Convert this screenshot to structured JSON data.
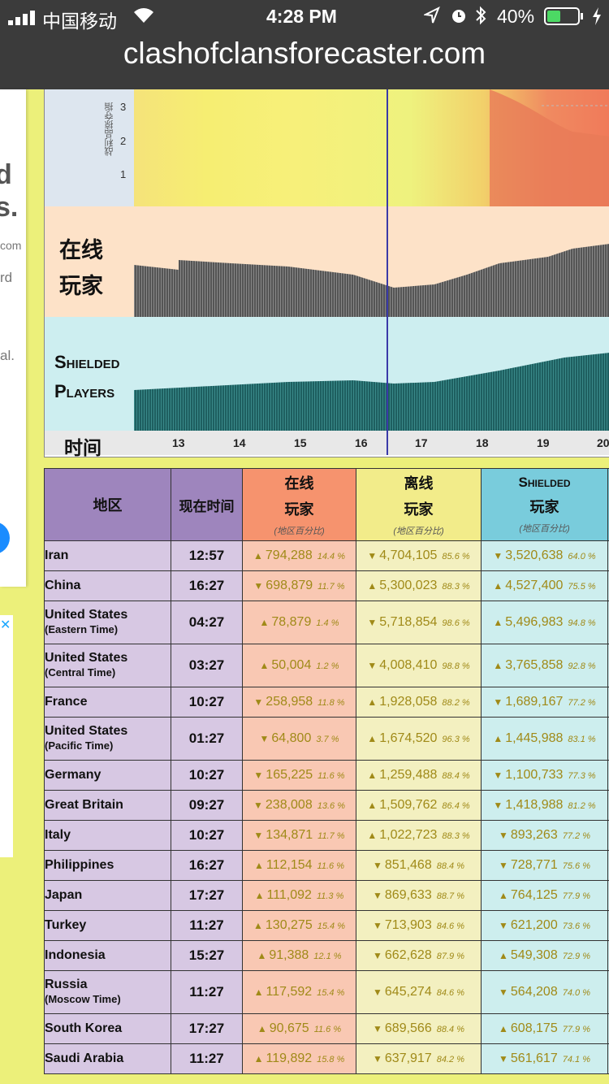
{
  "status": {
    "carrier": "中国移动",
    "time": "4:28 PM",
    "battery": "40%"
  },
  "url": "clashofclansforecaster.com",
  "leftcard": {
    "frag1": "d",
    "frag2": "s.",
    "frag3": "com",
    "frag4": "rd",
    "frag5": "al."
  },
  "chart": {
    "y_label": "战利品掠夺指",
    "y_ticks": [
      "3",
      "2",
      "1"
    ],
    "online_label_1": "在线",
    "online_label_2": "玩家",
    "shielded_label_1": "Shielded",
    "shielded_label_2": "Players",
    "time_label": "时间",
    "x_ticks": [
      "13",
      "14",
      "15",
      "16",
      "17",
      "18",
      "19",
      "20"
    ]
  },
  "table": {
    "headers": {
      "region": "地区",
      "local_time": "现在时间",
      "online_1": "在线",
      "online_2": "玩家",
      "online_sub": "(地区百分比)",
      "offline_1": "离线",
      "offline_2": "玩家",
      "offline_sub": "(地区百分比)",
      "shield_1": "Shielded",
      "shield_2": "玩家",
      "shield_sub": "(地区百分比)"
    },
    "rows": [
      {
        "region": "Iran",
        "sub": "",
        "time": "12:57",
        "on": "794,288",
        "onp": "14.4 %",
        "ona": "up",
        "off": "4,704,105",
        "offp": "85.6 %",
        "offa": "down",
        "sh": "3,520,638",
        "shp": "64.0 %",
        "sha": "down"
      },
      {
        "region": "China",
        "sub": "",
        "time": "16:27",
        "on": "698,879",
        "onp": "11.7 %",
        "ona": "down",
        "off": "5,300,023",
        "offp": "88.3 %",
        "offa": "up",
        "sh": "4,527,400",
        "shp": "75.5 %",
        "sha": "up"
      },
      {
        "region": "United States",
        "sub": "(Eastern Time)",
        "time": "04:27",
        "on": "78,879",
        "onp": "1.4 %",
        "ona": "up",
        "off": "5,718,854",
        "offp": "98.6 %",
        "offa": "down",
        "sh": "5,496,983",
        "shp": "94.8 %",
        "sha": "up"
      },
      {
        "region": "United States",
        "sub": "(Central Time)",
        "time": "03:27",
        "on": "50,004",
        "onp": "1.2 %",
        "ona": "up",
        "off": "4,008,410",
        "offp": "98.8 %",
        "offa": "down",
        "sh": "3,765,858",
        "shp": "92.8 %",
        "sha": "up"
      },
      {
        "region": "France",
        "sub": "",
        "time": "10:27",
        "on": "258,958",
        "onp": "11.8 %",
        "ona": "down",
        "off": "1,928,058",
        "offp": "88.2 %",
        "offa": "up",
        "sh": "1,689,167",
        "shp": "77.2 %",
        "sha": "down"
      },
      {
        "region": "United States",
        "sub": "(Pacific Time)",
        "time": "01:27",
        "on": "64,800",
        "onp": "3.7 %",
        "ona": "down",
        "off": "1,674,520",
        "offp": "96.3 %",
        "offa": "up",
        "sh": "1,445,988",
        "shp": "83.1 %",
        "sha": "up"
      },
      {
        "region": "Germany",
        "sub": "",
        "time": "10:27",
        "on": "165,225",
        "onp": "11.6 %",
        "ona": "down",
        "off": "1,259,488",
        "offp": "88.4 %",
        "offa": "up",
        "sh": "1,100,733",
        "shp": "77.3 %",
        "sha": "down"
      },
      {
        "region": "Great Britain",
        "sub": "",
        "time": "09:27",
        "on": "238,008",
        "onp": "13.6 %",
        "ona": "down",
        "off": "1,509,762",
        "offp": "86.4 %",
        "offa": "up",
        "sh": "1,418,988",
        "shp": "81.2 %",
        "sha": "down"
      },
      {
        "region": "Italy",
        "sub": "",
        "time": "10:27",
        "on": "134,871",
        "onp": "11.7 %",
        "ona": "down",
        "off": "1,022,723",
        "offp": "88.3 %",
        "offa": "up",
        "sh": "893,263",
        "shp": "77.2 %",
        "sha": "down"
      },
      {
        "region": "Philippines",
        "sub": "",
        "time": "16:27",
        "on": "112,154",
        "onp": "11.6 %",
        "ona": "up",
        "off": "851,468",
        "offp": "88.4 %",
        "offa": "down",
        "sh": "728,771",
        "shp": "75.6 %",
        "sha": "down"
      },
      {
        "region": "Japan",
        "sub": "",
        "time": "17:27",
        "on": "111,092",
        "onp": "11.3 %",
        "ona": "up",
        "off": "869,633",
        "offp": "88.7 %",
        "offa": "down",
        "sh": "764,125",
        "shp": "77.9 %",
        "sha": "up"
      },
      {
        "region": "Turkey",
        "sub": "",
        "time": "11:27",
        "on": "130,275",
        "onp": "15.4 %",
        "ona": "up",
        "off": "713,903",
        "offp": "84.6 %",
        "offa": "down",
        "sh": "621,200",
        "shp": "73.6 %",
        "sha": "down"
      },
      {
        "region": "Indonesia",
        "sub": "",
        "time": "15:27",
        "on": "91,388",
        "onp": "12.1 %",
        "ona": "up",
        "off": "662,628",
        "offp": "87.9 %",
        "offa": "down",
        "sh": "549,308",
        "shp": "72.9 %",
        "sha": "up"
      },
      {
        "region": "Russia",
        "sub": "(Moscow Time)",
        "time": "11:27",
        "on": "117,592",
        "onp": "15.4 %",
        "ona": "up",
        "off": "645,274",
        "offp": "84.6 %",
        "offa": "down",
        "sh": "564,208",
        "shp": "74.0 %",
        "sha": "down"
      },
      {
        "region": "South Korea",
        "sub": "",
        "time": "17:27",
        "on": "90,675",
        "onp": "11.6 %",
        "ona": "up",
        "off": "689,566",
        "offp": "88.4 %",
        "offa": "down",
        "sh": "608,175",
        "shp": "77.9 %",
        "sha": "up"
      },
      {
        "region": "Saudi Arabia",
        "sub": "",
        "time": "11:27",
        "on": "119,892",
        "onp": "15.8 %",
        "ona": "up",
        "off": "637,917",
        "offp": "84.2 %",
        "offa": "down",
        "sh": "561,617",
        "shp": "74.1 %",
        "sha": "down"
      }
    ]
  }
}
